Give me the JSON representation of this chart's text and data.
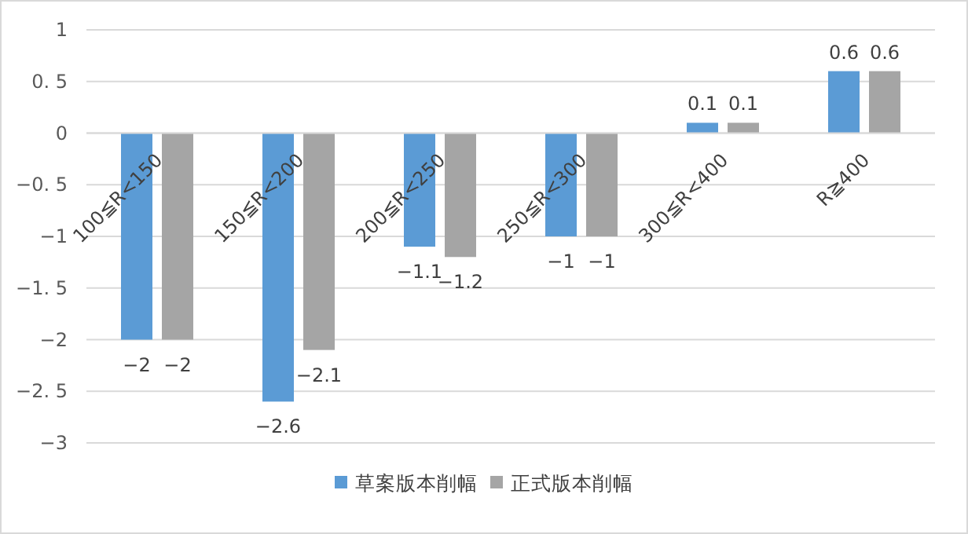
{
  "chart_data": {
    "type": "bar",
    "categories": [
      "100≦R<150",
      "150≦R<200",
      "200≦R<250",
      "250≦R<300",
      "300≦R<400",
      "R≧400"
    ],
    "series": [
      {
        "name": "草案版本削幅",
        "color": "#5b9bd5",
        "values": [
          -2,
          -2.6,
          -1.1,
          -1,
          0.1,
          0.6
        ]
      },
      {
        "name": "正式版本削幅",
        "color": "#a5a5a5",
        "values": [
          -2,
          -2.1,
          -1.2,
          -1,
          0.1,
          0.6
        ]
      }
    ],
    "ylim": [
      -3,
      1
    ],
    "yticks": [
      {
        "value": 1,
        "label": "1"
      },
      {
        "value": 0.5,
        "label": "0. 5"
      },
      {
        "value": 0,
        "label": "0"
      },
      {
        "value": -0.5,
        "label": "−0. 5"
      },
      {
        "value": -1,
        "label": "−1"
      },
      {
        "value": -1.5,
        "label": "−1. 5"
      },
      {
        "value": -2,
        "label": "−2"
      },
      {
        "value": -2.5,
        "label": "−2. 5"
      },
      {
        "value": -3,
        "label": "−3"
      }
    ],
    "grid": "y",
    "data_labels": true,
    "legend": "bottom"
  }
}
